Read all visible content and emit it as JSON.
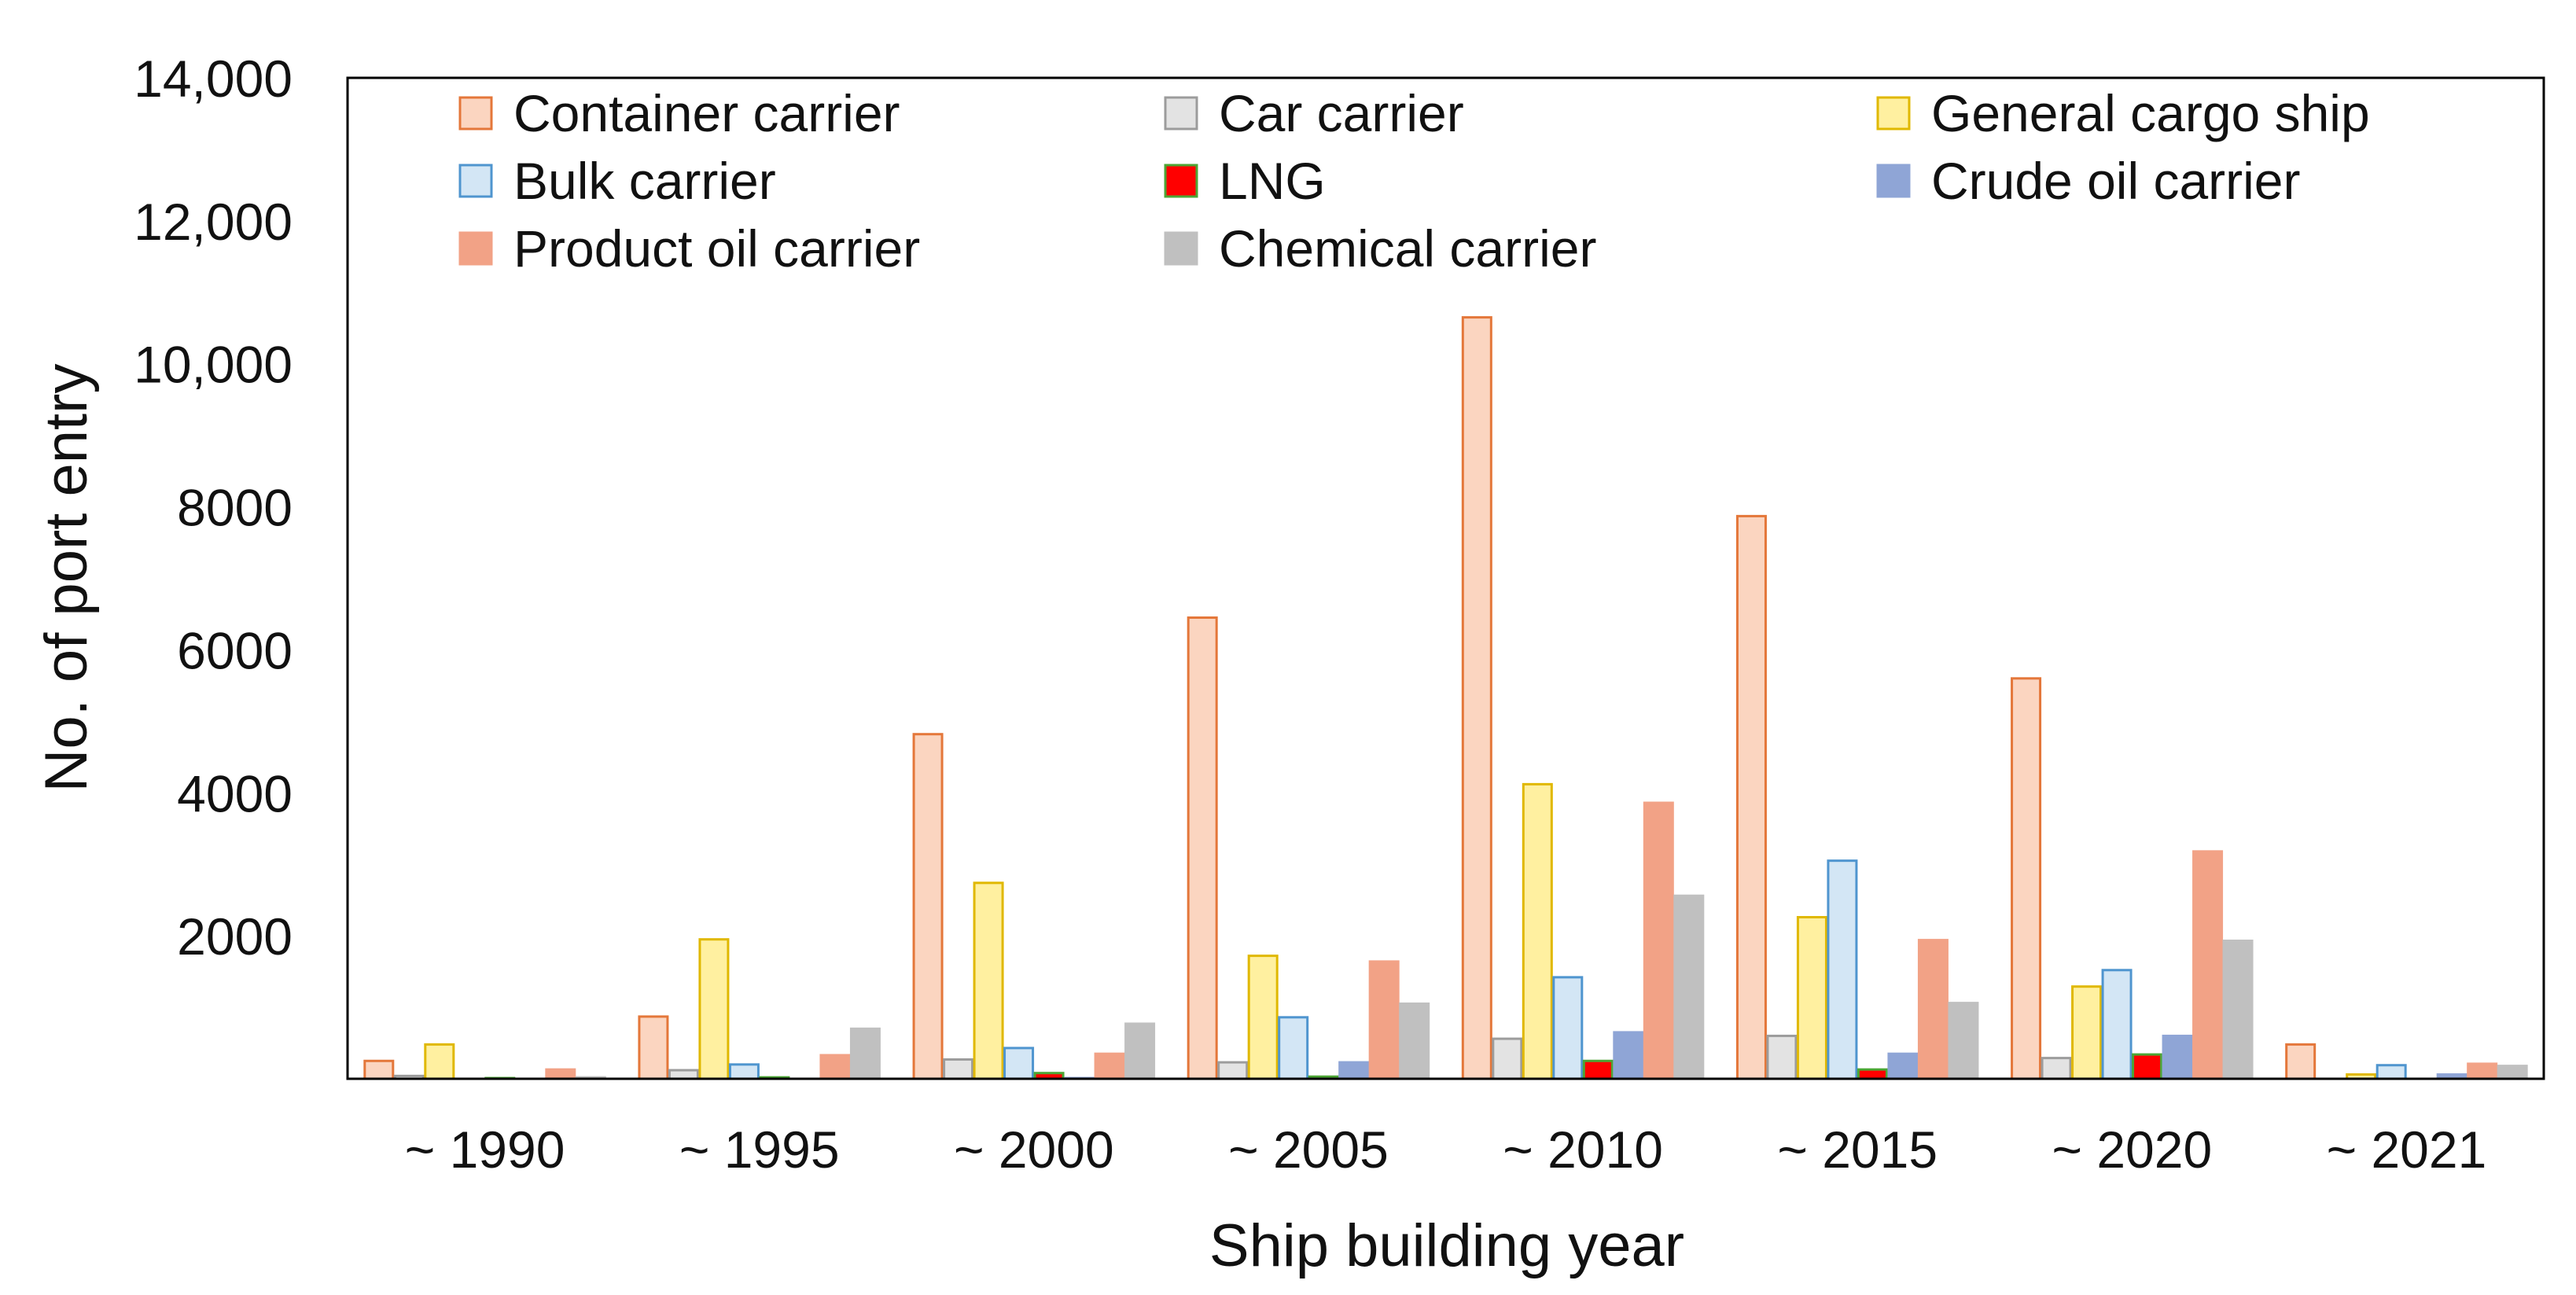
{
  "chart_data": {
    "type": "bar",
    "title": "",
    "xlabel": "Ship building year",
    "ylabel": "No. of port entry",
    "ylim": [
      0,
      14000
    ],
    "yticks": [
      0,
      2000,
      4000,
      6000,
      8000,
      10000,
      12000,
      14000
    ],
    "ytick_labels": [
      "",
      "2000",
      "4000",
      "6000",
      "8000",
      "10,000",
      "12,000",
      "14,000"
    ],
    "grid": false,
    "legend_position": "top-inside",
    "categories": [
      "~ 1990",
      "~ 1995",
      "~ 2000",
      "~ 2005",
      "~ 2010",
      "~ 2015",
      "~ 2020",
      "~ 2021"
    ],
    "series": [
      {
        "name": "Container carrier",
        "fill": "#FBD5C0",
        "stroke": "#E4773A",
        "values": [
          250,
          870,
          4820,
          6450,
          10650,
          7870,
          5600,
          480
        ]
      },
      {
        "name": "Car carrier",
        "fill": "#E3E3E3",
        "stroke": "#9C9C9C",
        "values": [
          40,
          120,
          270,
          230,
          560,
          600,
          290,
          0
        ]
      },
      {
        "name": "General cargo ship",
        "fill": "#FFF0A0",
        "stroke": "#E0B800",
        "values": [
          480,
          1950,
          2740,
          1720,
          4120,
          2260,
          1290,
          60
        ]
      },
      {
        "name": "Bulk carrier",
        "fill": "#D3E6F5",
        "stroke": "#4F95CF",
        "values": [
          0,
          200,
          430,
          860,
          1420,
          3050,
          1520,
          190
        ]
      },
      {
        "name": "LNG",
        "fill": "#FF0000",
        "stroke": "#4CA635",
        "values": [
          10,
          20,
          80,
          30,
          250,
          130,
          340,
          0
        ]
      },
      {
        "name": "Crude oil carrier",
        "fill": "#8FA5D6",
        "stroke": "#8FA5D6",
        "values": [
          0,
          0,
          10,
          230,
          650,
          350,
          600,
          60
        ]
      },
      {
        "name": "Product oil carrier",
        "fill": "#F2A286",
        "stroke": "#F2A286",
        "values": [
          130,
          330,
          350,
          1640,
          3860,
          1940,
          3180,
          210
        ]
      },
      {
        "name": "Chemical carrier",
        "fill": "#C0C0C0",
        "stroke": "#C0C0C0",
        "values": [
          20,
          700,
          770,
          1050,
          2560,
          1060,
          1930,
          180
        ]
      }
    ]
  }
}
